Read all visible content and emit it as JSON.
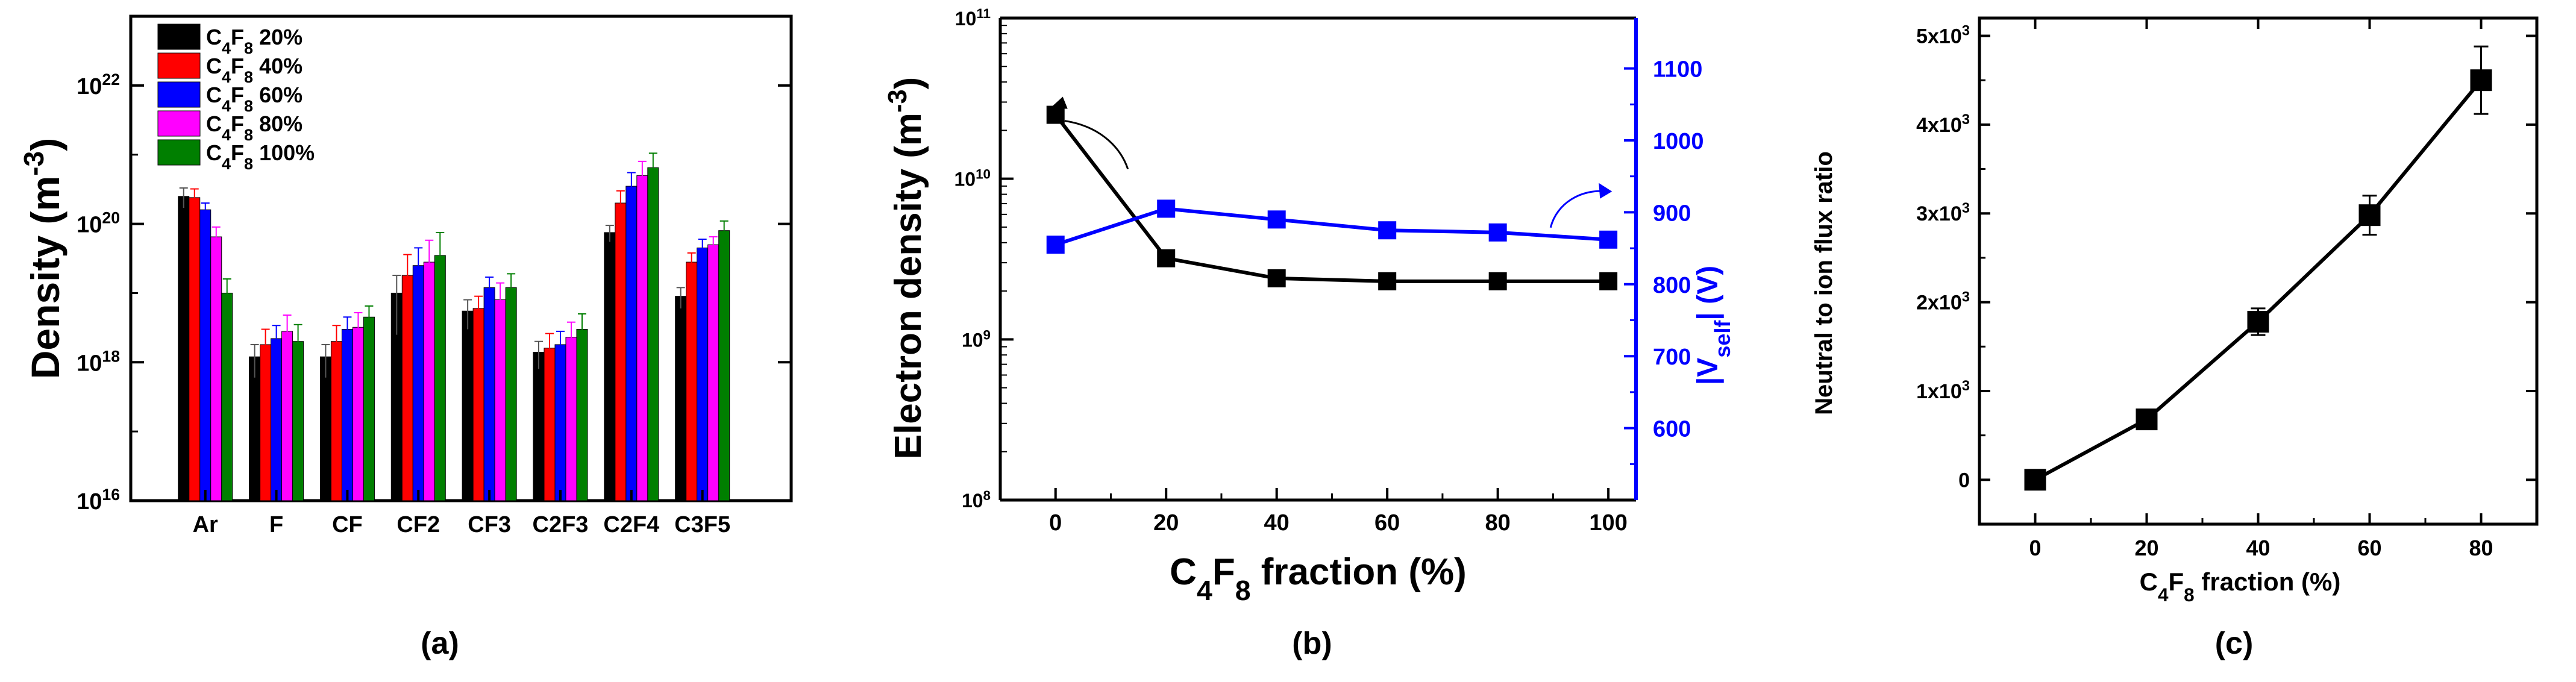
{
  "chart_data": [
    {
      "panel": "(a)",
      "type": "bar",
      "xlabel": "",
      "ylabel": "Density (m^-3)",
      "yscale": "log",
      "ylim": [
        1e+16,
        1e+23
      ],
      "yticks": [
        {
          "value": 1e+16,
          "exp": "16"
        },
        {
          "value": 1e+18,
          "exp": "18"
        },
        {
          "value": 1e+20,
          "exp": "20"
        },
        {
          "value": 1e+22,
          "exp": "22"
        }
      ],
      "categories": [
        "Ar",
        "F",
        "CF",
        "CF2",
        "CF3",
        "C2F3",
        "C2F4",
        "C3F5"
      ],
      "legend_position": "top-left",
      "series": [
        {
          "pct": "20%",
          "color": "#000000",
          "values": [
            2.5e+20,
            1.2e+18,
            1.2e+18,
            1e+19,
            5.5e+18,
            1.4e+18,
            7.5e+19,
            9e+18
          ],
          "errors": [
            8e+19,
            6e+17,
            6e+17,
            8e+18,
            2.5e+18,
            6e+17,
            2e+19,
            3e+18
          ]
        },
        {
          "pct": "40%",
          "color": "#ff0000",
          "values": [
            2.4e+20,
            1.8e+18,
            2e+18,
            1.8e+19,
            6e+18,
            1.6e+18,
            2e+20,
            2.8e+19
          ],
          "errors": [
            8e+19,
            1.2e+18,
            1.4e+18,
            1.8e+19,
            3e+18,
            1e+18,
            1e+20,
            1e+19
          ]
        },
        {
          "pct": "60%",
          "color": "#0000ff",
          "values": [
            1.6e+20,
            2.2e+18,
            3e+18,
            2.5e+19,
            1.2e+19,
            1.8e+18,
            3.5e+20,
            4.5e+19
          ],
          "errors": [
            4e+19,
            1.2e+18,
            1.5e+18,
            2e+19,
            5e+18,
            1e+18,
            2e+20,
            1.5e+19
          ]
        },
        {
          "pct": "80%",
          "color": "#ff00ff",
          "values": [
            6.5e+19,
            2.8e+18,
            3.2e+18,
            2.8e+19,
            8e+18,
            2.3e+18,
            5e+20,
            5e+19
          ],
          "errors": [
            2.5e+19,
            2e+18,
            2e+18,
            3e+19,
            6e+18,
            1.5e+18,
            3e+20,
            1.5e+19
          ]
        },
        {
          "pct": "100%",
          "color": "#007f00",
          "values": [
            1e+19,
            2e+18,
            4.5e+18,
            3.5e+19,
            1.2e+19,
            3e+18,
            6.5e+20,
            8e+19
          ],
          "errors": [
            6e+18,
            1.5e+18,
            2e+18,
            4e+19,
            7e+18,
            2e+18,
            4e+20,
            3e+19
          ]
        }
      ],
      "caption": "(a)"
    },
    {
      "panel": "(b)",
      "type": "line",
      "x": [
        0,
        20,
        40,
        60,
        80,
        100
      ],
      "xlim": [
        -10,
        105
      ],
      "xticks": [
        "0",
        "20",
        "40",
        "60",
        "80",
        "100"
      ],
      "xlabel_parts": [
        "C",
        "4",
        "F",
        "8",
        " fraction (%)"
      ],
      "left_axis": {
        "label": "Electron density (m^-3)",
        "scale": "log",
        "ylim": [
          100000000.0,
          100000000000.0
        ],
        "yticks": [
          {
            "value": 100000000.0,
            "exp": "8"
          },
          {
            "value": 1000000000.0,
            "exp": "9"
          },
          {
            "value": 10000000000.0,
            "exp": "10"
          },
          {
            "value": 100000000000.0,
            "exp": "11"
          }
        ]
      },
      "right_axis": {
        "label": "|V_self| (V)",
        "ylim": [
          500,
          1170
        ],
        "yticks": [
          600,
          700,
          800,
          900,
          1000,
          1100
        ],
        "color": "#0000ff"
      },
      "series": [
        {
          "axis": "left",
          "color": "#000000",
          "values": [
            25000000000.0,
            3200000000.0,
            2400000000.0,
            2300000000.0,
            2300000000.0,
            2300000000.0
          ]
        },
        {
          "axis": "right",
          "color": "#0000ff",
          "values": [
            855,
            905,
            890,
            875,
            872,
            862
          ]
        }
      ],
      "caption": "(b)"
    },
    {
      "panel": "(c)",
      "type": "line",
      "x": [
        0,
        20,
        40,
        60,
        80
      ],
      "xlim": [
        -10,
        90
      ],
      "xticks": [
        "0",
        "20",
        "40",
        "60",
        "80"
      ],
      "xlabel_parts": [
        "C",
        "4",
        "F",
        "8",
        " fraction (%)"
      ],
      "ylabel": "Neutral to ion flux ratio",
      "ylim": [
        -500,
        5200
      ],
      "yticks": [
        {
          "value": 0,
          "mant": "0",
          "exp": ""
        },
        {
          "value": 1000,
          "mant": "1x10",
          "exp": "3"
        },
        {
          "value": 2000,
          "mant": "2x10",
          "exp": "3"
        },
        {
          "value": 3000,
          "mant": "3x10",
          "exp": "3"
        },
        {
          "value": 4000,
          "mant": "4x10",
          "exp": "3"
        },
        {
          "value": 5000,
          "mant": "5x10",
          "exp": "3"
        }
      ],
      "series": [
        {
          "color": "#000000",
          "values": [
            0,
            680,
            1780,
            2980,
            4500
          ],
          "errors": [
            40,
            60,
            150,
            220,
            380
          ]
        }
      ],
      "caption": "(c)"
    }
  ]
}
